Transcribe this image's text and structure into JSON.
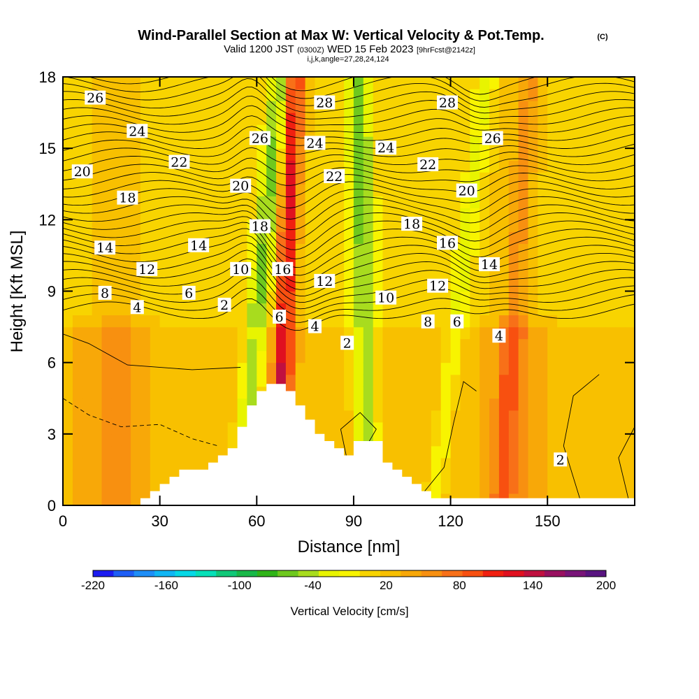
{
  "header": {
    "title": "Wind-Parallel Section at Max W: Vertical Velocity & Pot.Temp.",
    "copyright": "(C)",
    "valid_prefix": "Valid 1200 JST",
    "valid_utc": "(0300Z)",
    "valid_date": "WED 15 Feb 2023",
    "forecast": "[9hrFcst@2142z]",
    "indices": "i,j,k,angle=27,28,24,124"
  },
  "colors": {
    "background": "#ffffff",
    "axis": "#000000",
    "terrain": "#ffffff",
    "contour": "#000000"
  },
  "chart_data": {
    "type": "heatmap",
    "xlabel": "Distance [nm]",
    "ylabel": "Height [Kft MSL]",
    "xlim": [
      0,
      177
    ],
    "ylim": [
      0,
      18
    ],
    "xticks": [
      0,
      30,
      60,
      90,
      120,
      150
    ],
    "yticks": [
      0,
      3,
      6,
      9,
      12,
      15,
      18
    ],
    "colorbar": {
      "label": "Vertical Velocity [cm/s]",
      "range": [
        -220,
        200
      ],
      "tick_labels": [
        "-220",
        "-160",
        "-100",
        "-40",
        "20",
        "80",
        "140",
        "200"
      ],
      "colors": [
        "#1c1cf0",
        "#1e5ef5",
        "#1e8ef7",
        "#10b6f4",
        "#06d8e6",
        "#06e0b8",
        "#10c878",
        "#18b848",
        "#30b418",
        "#6ec81e",
        "#a8dc1e",
        "#e8f400",
        "#f8f400",
        "#f8d400",
        "#f8c000",
        "#f8a808",
        "#f89010",
        "#f87018",
        "#f85010",
        "#f02010",
        "#e01020",
        "#c01040",
        "#981060",
        "#781478",
        "#581480"
      ]
    },
    "terrain_profile": {
      "distance_nm": [
        0,
        22,
        24,
        27,
        30,
        33,
        36,
        42,
        45,
        48,
        51,
        54,
        57,
        60,
        63,
        66,
        69,
        72,
        75,
        78,
        81,
        84,
        87,
        90,
        96,
        99,
        102,
        105,
        108,
        111,
        114,
        177
      ],
      "height_kft": [
        0,
        0,
        0.3,
        0.6,
        0.9,
        1.2,
        1.5,
        1.5,
        1.8,
        2.1,
        2.4,
        3.3,
        4.2,
        4.8,
        5.1,
        5.1,
        4.8,
        4.2,
        3.6,
        3.0,
        2.7,
        2.4,
        2.1,
        2.7,
        2.7,
        1.8,
        1.5,
        1.2,
        0.9,
        0.6,
        0.3,
        0.3
      ]
    },
    "vertical_velocity_bands": [
      {
        "center_nm": 61,
        "slope_nm_per_kft": 0.7,
        "half_width_nm": 3.5,
        "value_cm_s": -70
      },
      {
        "center_nm": 69,
        "slope_nm_per_kft": 0.3,
        "half_width_nm": 3.0,
        "value_cm_s": 110
      },
      {
        "center_nm": 93,
        "slope_nm_per_kft": -0.15,
        "half_width_nm": 4.0,
        "value_cm_s": -70
      },
      {
        "center_nm": 123,
        "slope_nm_per_kft": 0.9,
        "half_width_nm": 3.0,
        "value_cm_s": -40
      },
      {
        "center_nm": 140,
        "slope_nm_per_kft": 0.5,
        "half_width_nm": 3.0,
        "value_cm_s": 40
      },
      {
        "center_nm": 16,
        "slope_nm_per_kft": 0,
        "half_width_nm": 9.0,
        "value_cm_s": 25
      },
      {
        "center_nm": 140,
        "slope_nm_per_kft": 0,
        "half_width_nm": 8.0,
        "value_cm_s": 30
      }
    ],
    "theta_contour_labels": [
      {
        "text": "26",
        "x_nm": 10,
        "h_kft": 17.1
      },
      {
        "text": "24",
        "x_nm": 23,
        "h_kft": 15.7
      },
      {
        "text": "20",
        "x_nm": 6,
        "h_kft": 14.0
      },
      {
        "text": "22",
        "x_nm": 36,
        "h_kft": 14.4
      },
      {
        "text": "18",
        "x_nm": 20,
        "h_kft": 12.9
      },
      {
        "text": "14",
        "x_nm": 13,
        "h_kft": 10.8
      },
      {
        "text": "14",
        "x_nm": 42,
        "h_kft": 10.9
      },
      {
        "text": "12",
        "x_nm": 26,
        "h_kft": 9.9
      },
      {
        "text": "8",
        "x_nm": 13,
        "h_kft": 8.9
      },
      {
        "text": "6",
        "x_nm": 39,
        "h_kft": 8.9
      },
      {
        "text": "4",
        "x_nm": 23,
        "h_kft": 8.3
      },
      {
        "text": "10",
        "x_nm": 55,
        "h_kft": 9.9
      },
      {
        "text": "2",
        "x_nm": 50,
        "h_kft": 8.4
      },
      {
        "text": "20",
        "x_nm": 55,
        "h_kft": 13.4
      },
      {
        "text": "26",
        "x_nm": 61,
        "h_kft": 15.4
      },
      {
        "text": "18",
        "x_nm": 61,
        "h_kft": 11.7
      },
      {
        "text": "16",
        "x_nm": 68,
        "h_kft": 9.9
      },
      {
        "text": "6",
        "x_nm": 67,
        "h_kft": 7.9
      },
      {
        "text": "4",
        "x_nm": 78,
        "h_kft": 7.5
      },
      {
        "text": "28",
        "x_nm": 81,
        "h_kft": 16.9
      },
      {
        "text": "24",
        "x_nm": 78,
        "h_kft": 15.2
      },
      {
        "text": "22",
        "x_nm": 84,
        "h_kft": 13.8
      },
      {
        "text": "12",
        "x_nm": 81,
        "h_kft": 9.4
      },
      {
        "text": "2",
        "x_nm": 88,
        "h_kft": 6.8
      },
      {
        "text": "24",
        "x_nm": 100,
        "h_kft": 15.0
      },
      {
        "text": "22",
        "x_nm": 113,
        "h_kft": 14.3
      },
      {
        "text": "18",
        "x_nm": 108,
        "h_kft": 11.8
      },
      {
        "text": "10",
        "x_nm": 100,
        "h_kft": 8.7
      },
      {
        "text": "8",
        "x_nm": 113,
        "h_kft": 7.7
      },
      {
        "text": "6",
        "x_nm": 122,
        "h_kft": 7.7
      },
      {
        "text": "28",
        "x_nm": 119,
        "h_kft": 16.9
      },
      {
        "text": "20",
        "x_nm": 125,
        "h_kft": 13.2
      },
      {
        "text": "16",
        "x_nm": 119,
        "h_kft": 11.0
      },
      {
        "text": "12",
        "x_nm": 116,
        "h_kft": 9.2
      },
      {
        "text": "26",
        "x_nm": 133,
        "h_kft": 15.4
      },
      {
        "text": "14",
        "x_nm": 132,
        "h_kft": 10.1
      },
      {
        "text": "4",
        "x_nm": 135,
        "h_kft": 7.1
      },
      {
        "text": "2",
        "x_nm": 154,
        "h_kft": 1.9
      }
    ]
  }
}
